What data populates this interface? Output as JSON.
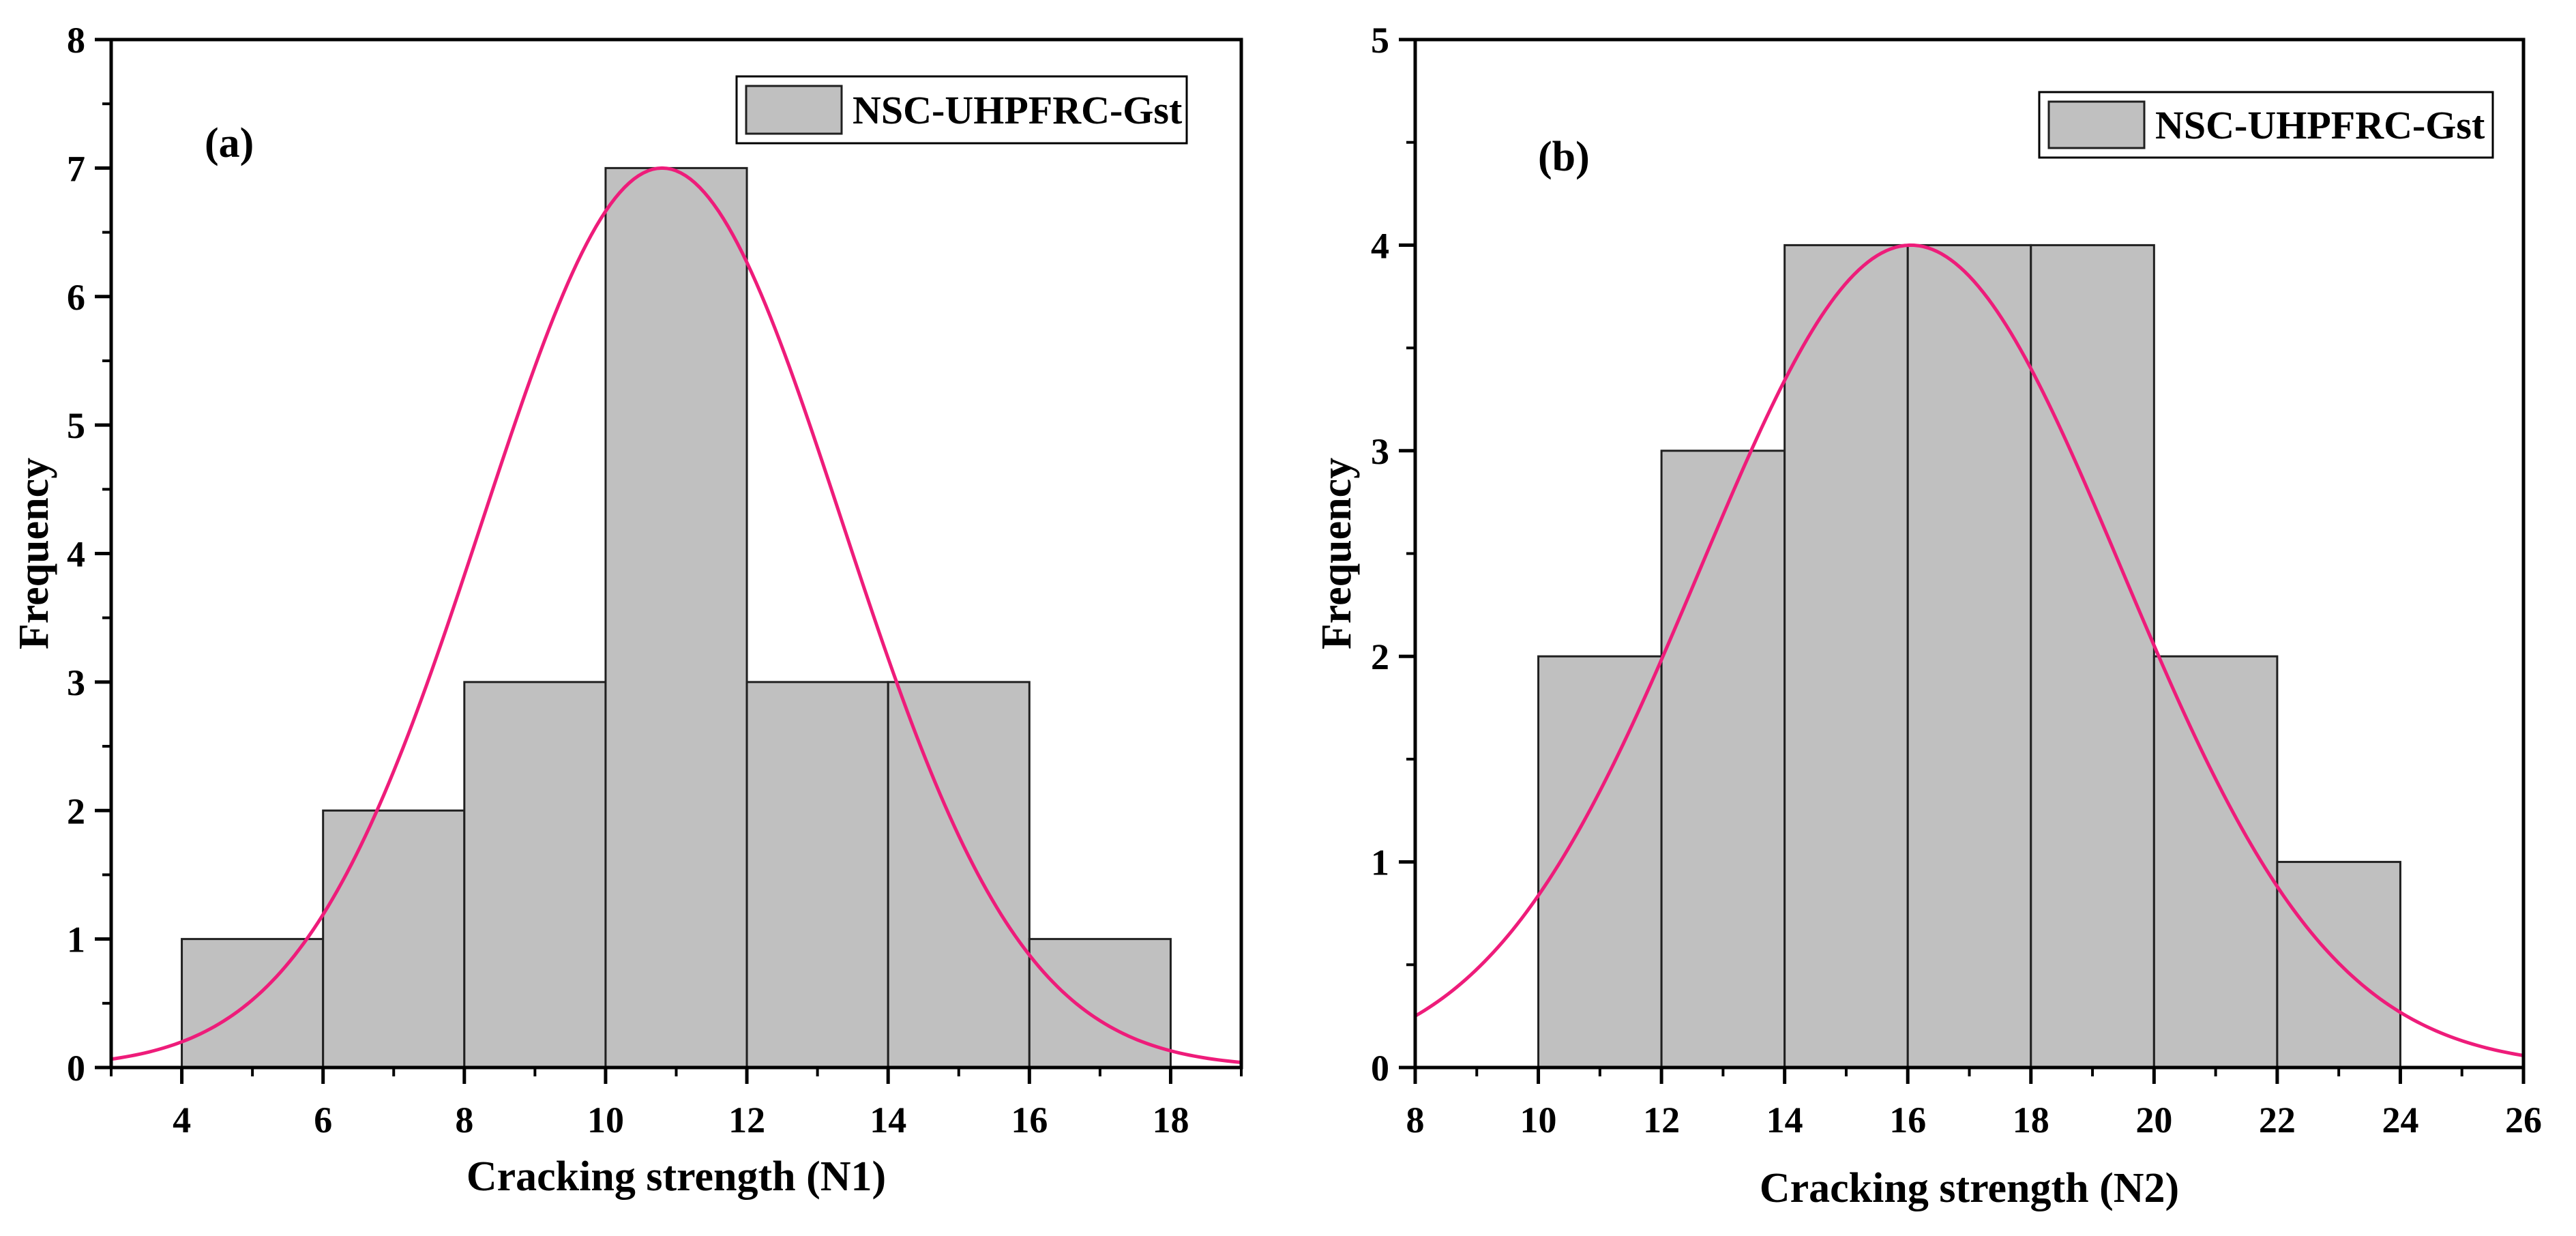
{
  "chart_data": [
    {
      "type": "bar",
      "panel_label": "(a)",
      "title": "",
      "xlabel": "Cracking strength (N1)",
      "ylabel": "Frequency",
      "xlim": [
        3,
        19
      ],
      "ylim": [
        0,
        8
      ],
      "x_ticks": [
        4,
        6,
        8,
        10,
        12,
        14,
        16,
        18
      ],
      "y_ticks": [
        0,
        1,
        2,
        3,
        4,
        5,
        6,
        7,
        8
      ],
      "bins": [
        {
          "from": 4,
          "to": 6,
          "value": 1
        },
        {
          "from": 6,
          "to": 8,
          "value": 2
        },
        {
          "from": 8,
          "to": 10,
          "value": 3
        },
        {
          "from": 10,
          "to": 12,
          "value": 7
        },
        {
          "from": 12,
          "to": 14,
          "value": 3
        },
        {
          "from": 14,
          "to": 16,
          "value": 3
        },
        {
          "from": 16,
          "to": 18,
          "value": 1
        }
      ],
      "fit_curve": {
        "type": "normal",
        "peak": 7.0,
        "mean": 10.8,
        "sd": 2.55
      },
      "legend": {
        "label": "NSC-UHPFRC-Gst",
        "placement": "top-right"
      },
      "grid": false
    },
    {
      "type": "bar",
      "panel_label": "(b)",
      "title": "",
      "xlabel": "Cracking strength (N2)",
      "ylabel": "Frequency",
      "xlim": [
        8,
        26
      ],
      "ylim": [
        0,
        5
      ],
      "x_ticks": [
        8,
        10,
        12,
        14,
        16,
        18,
        20,
        22,
        24,
        26
      ],
      "y_ticks": [
        0,
        1,
        2,
        3,
        4,
        5
      ],
      "bins": [
        {
          "from": 10,
          "to": 12,
          "value": 2
        },
        {
          "from": 12,
          "to": 14,
          "value": 3
        },
        {
          "from": 14,
          "to": 16,
          "value": 4
        },
        {
          "from": 16,
          "to": 18,
          "value": 4
        },
        {
          "from": 18,
          "to": 20,
          "value": 4
        },
        {
          "from": 20,
          "to": 22,
          "value": 2
        },
        {
          "from": 22,
          "to": 24,
          "value": 1
        }
      ],
      "fit_curve": {
        "type": "normal",
        "peak": 4.0,
        "mean": 16.05,
        "sd": 3.42
      },
      "legend": {
        "label": "NSC-UHPFRC-Gst",
        "placement": "top-right"
      },
      "grid": false
    }
  ],
  "colors": {
    "bar_fill": "#c0c0c0",
    "bar_stroke": "#202020",
    "curve": "#ee1c7a",
    "axis": "#000000"
  }
}
